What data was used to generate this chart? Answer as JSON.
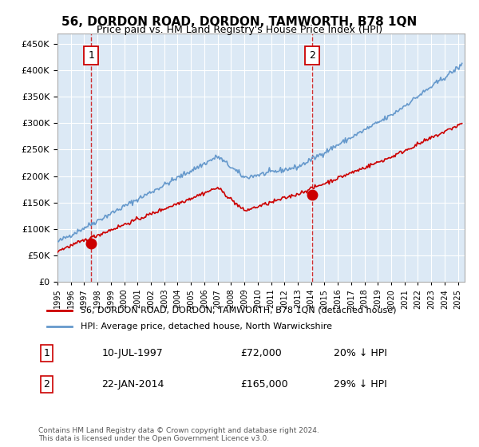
{
  "title": "56, DORDON ROAD, DORDON, TAMWORTH, B78 1QN",
  "subtitle": "Price paid vs. HM Land Registry's House Price Index (HPI)",
  "legend_line1": "56, DORDON ROAD, DORDON, TAMWORTH, B78 1QN (detached house)",
  "legend_line2": "HPI: Average price, detached house, North Warwickshire",
  "annotation1_label": "1",
  "annotation1_date": "10-JUL-1997",
  "annotation1_price": "£72,000",
  "annotation1_hpi": "20% ↓ HPI",
  "annotation1_year": 1997.53,
  "annotation1_value": 72000,
  "annotation2_label": "2",
  "annotation2_date": "22-JAN-2014",
  "annotation2_price": "£165,000",
  "annotation2_hpi": "29% ↓ HPI",
  "annotation2_year": 2014.06,
  "annotation2_value": 165000,
  "footer": "Contains HM Land Registry data © Crown copyright and database right 2024.\nThis data is licensed under the Open Government Licence v3.0.",
  "bg_color": "#dce9f5",
  "plot_bg": "#dce9f5",
  "red_color": "#cc0000",
  "blue_color": "#6699cc",
  "ylim": [
    0,
    470000
  ],
  "yticks": [
    0,
    50000,
    100000,
    150000,
    200000,
    250000,
    300000,
    350000,
    400000,
    450000
  ],
  "xmin": 1995,
  "xmax": 2025.5
}
